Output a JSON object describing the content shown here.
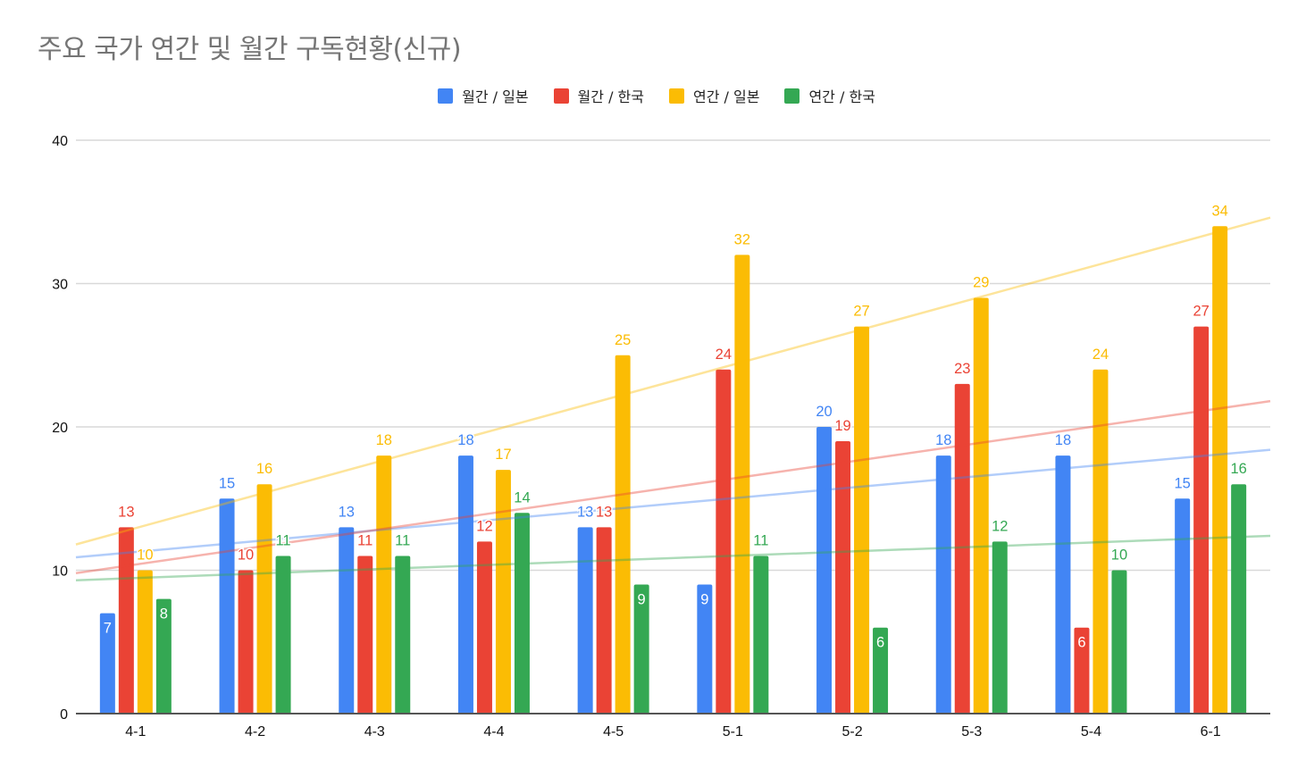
{
  "chart_data": {
    "type": "bar",
    "title": "주요 국가 연간 및 월간 구독현황(신규)",
    "xlabel": "",
    "ylabel": "",
    "ylim": [
      0,
      40
    ],
    "yticks": [
      0,
      10,
      20,
      30,
      40
    ],
    "grid": true,
    "legend_position": "top-center",
    "categories": [
      "4-1",
      "4-2",
      "4-3",
      "4-4",
      "4-5",
      "5-1",
      "5-2",
      "5-3",
      "5-4",
      "6-1"
    ],
    "series": [
      {
        "name": "월간 / 일본",
        "color": "#4285F4",
        "values": [
          7,
          15,
          13,
          18,
          13,
          9,
          20,
          18,
          18,
          15
        ],
        "trendline": [
          10.9,
          18.4
        ]
      },
      {
        "name": "월간 / 한국",
        "color": "#EA4335",
        "values": [
          13,
          10,
          11,
          12,
          13,
          24,
          19,
          23,
          6,
          27
        ],
        "trendline": [
          9.8,
          21.8
        ]
      },
      {
        "name": "연간 / 일본",
        "color": "#FBBC04",
        "values": [
          10,
          16,
          18,
          17,
          25,
          32,
          27,
          29,
          24,
          34
        ],
        "trendline": [
          11.8,
          34.6
        ]
      },
      {
        "name": "연간 / 한국",
        "color": "#34A853",
        "values": [
          8,
          11,
          11,
          14,
          9,
          11,
          6,
          12,
          10,
          16
        ],
        "trendline": [
          9.3,
          12.4
        ]
      }
    ],
    "annotations": "Linear trendlines shown for each series; data labels on every bar"
  }
}
